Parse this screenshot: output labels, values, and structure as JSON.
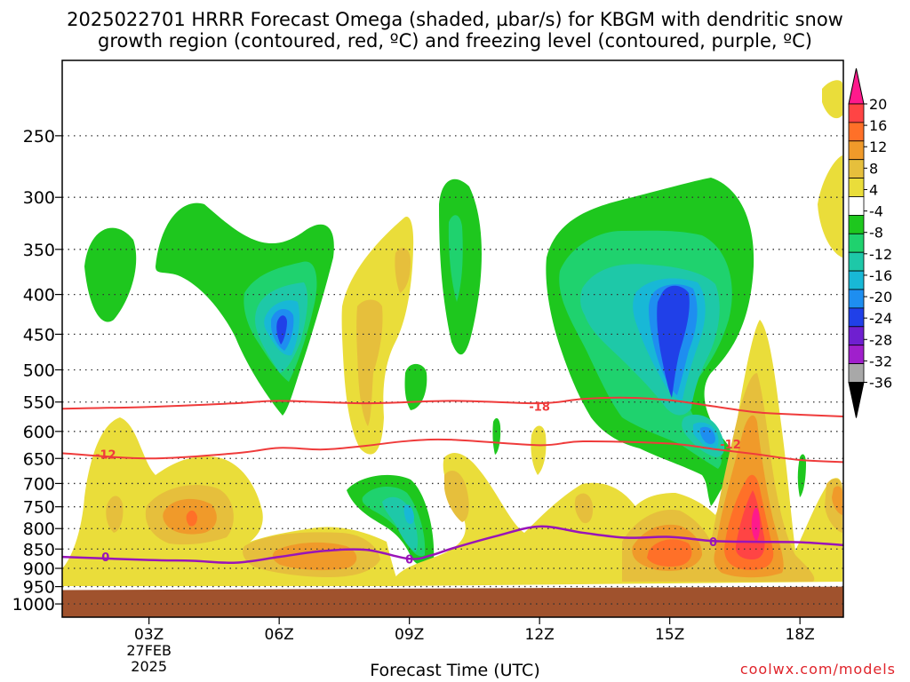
{
  "title_line1": "2025022701 HRRR Forecast Omega (shaded, µbar/s) for KBGM with dendritic snow",
  "title_line2": "growth region (contoured, red, ºC) and freezing level (contoured, purple, ºC)",
  "credit": "coolwx.com/models",
  "chart_data": {
    "type": "time-height cross-section",
    "xlabel": "Forecast Time (UTC)",
    "x_ticks": [
      {
        "hour": 3,
        "label": "03Z",
        "sub": [
          "27FEB",
          "2025"
        ]
      },
      {
        "hour": 6,
        "label": "06Z"
      },
      {
        "hour": 9,
        "label": "09Z"
      },
      {
        "hour": 12,
        "label": "12Z"
      },
      {
        "hour": 15,
        "label": "15Z"
      },
      {
        "hour": 18,
        "label": "18Z"
      }
    ],
    "x_range_hours": [
      1,
      19
    ],
    "y_axis": "Pressure (hPa), log scale, inverted",
    "y_ticks": [
      250,
      300,
      350,
      400,
      450,
      500,
      550,
      600,
      650,
      700,
      750,
      800,
      850,
      900,
      950,
      1000
    ],
    "y_range_hpa": [
      200,
      1040
    ],
    "ground_top_hpa": [
      960,
      950
    ],
    "colorbar": {
      "ticks": [
        20,
        16,
        12,
        8,
        4,
        -4,
        -8,
        -12,
        -16,
        -20,
        -24,
        -28,
        -32,
        -36
      ],
      "colors": [
        "#ff1a8c",
        "#ff4444",
        "#ff7028",
        "#f09a2a",
        "#e6bf3c",
        "#eadd3a",
        "#ffffff",
        "#1ec71e",
        "#1fd26e",
        "#1ec8a8",
        "#18b8d6",
        "#1e8ef0",
        "#2040e8",
        "#6f1fd0",
        "#a01fcc",
        "#a8a8a8",
        "#000000"
      ]
    },
    "isotherm_minus18": {
      "label": "-18",
      "color": "#ef3b3b",
      "points": [
        [
          1,
          561
        ],
        [
          3,
          558
        ],
        [
          5,
          552
        ],
        [
          6,
          548
        ],
        [
          8,
          552
        ],
        [
          10,
          548
        ],
        [
          12,
          552
        ],
        [
          13,
          545
        ],
        [
          14,
          543
        ],
        [
          15,
          547
        ],
        [
          16,
          557
        ],
        [
          17,
          567
        ],
        [
          18,
          571
        ],
        [
          19,
          574
        ]
      ]
    },
    "isotherm_minus12": {
      "label": "-12",
      "color": "#ef3b3b",
      "points": [
        [
          1,
          640
        ],
        [
          3,
          650
        ],
        [
          5,
          640
        ],
        [
          6,
          630
        ],
        [
          7,
          633
        ],
        [
          8,
          626
        ],
        [
          9,
          617
        ],
        [
          10,
          615
        ],
        [
          12,
          625
        ],
        [
          13,
          618
        ],
        [
          15,
          622
        ],
        [
          16,
          632
        ],
        [
          17,
          642
        ],
        [
          18,
          653
        ],
        [
          19,
          657
        ]
      ]
    },
    "freezing_level": {
      "label": "0",
      "color": "#9914b8",
      "points": [
        [
          1,
          870
        ],
        [
          3,
          878
        ],
        [
          4,
          880
        ],
        [
          5,
          885
        ],
        [
          6,
          870
        ],
        [
          7,
          855
        ],
        [
          8,
          852
        ],
        [
          9,
          875
        ],
        [
          9.5,
          866
        ],
        [
          10,
          848
        ],
        [
          11,
          818
        ],
        [
          12,
          795
        ],
        [
          13,
          810
        ],
        [
          14,
          822
        ],
        [
          15,
          820
        ],
        [
          16,
          830
        ],
        [
          17,
          832
        ],
        [
          18,
          833
        ],
        [
          19,
          840
        ]
      ]
    },
    "label_positions": {
      "minus18": [
        12,
        557
      ],
      "minus12_left": [
        2,
        642
      ],
      "minus12_right": [
        16.4,
        623
      ],
      "zero_left": [
        2,
        870
      ],
      "zero_mid": [
        9,
        875
      ],
      "zero_right": [
        16,
        832
      ]
    }
  }
}
